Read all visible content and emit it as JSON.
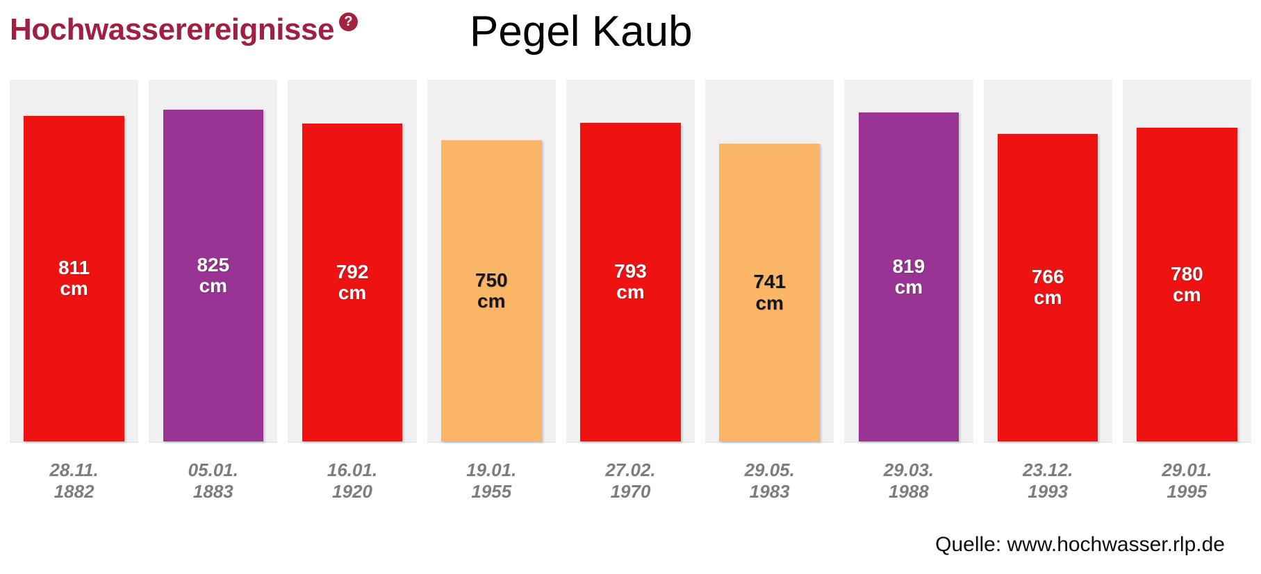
{
  "header": {
    "widget_title": "Hochwasserereignisse",
    "help_icon_glyph": "?",
    "chart_title": "Pegel Kaub"
  },
  "colors": {
    "title_maroon": "#9e2143",
    "badge_maroon": "#a12340",
    "column_background": "#f0f0f0",
    "bar_red": "#ee1212",
    "bar_purple": "#993394",
    "bar_orange": "#fbb567",
    "date_gray": "#7d7d7d"
  },
  "chart_data": {
    "type": "bar",
    "title": "Pegel Kaub",
    "xlabel": "",
    "ylabel": "",
    "unit": "cm",
    "ylim": [
      0,
      900
    ],
    "grid": false,
    "legend": false,
    "categories": [
      "28.11. 1882",
      "05.01. 1883",
      "16.01. 1920",
      "19.01. 1955",
      "27.02. 1970",
      "29.05. 1983",
      "29.03. 1988",
      "23.12. 1993",
      "29.01. 1995"
    ],
    "values": [
      811,
      825,
      792,
      750,
      793,
      741,
      819,
      766,
      780
    ],
    "bars": [
      {
        "value": 811,
        "unit": "cm",
        "date_day": "28.11.",
        "date_year": "1882",
        "color": "#ee1212",
        "text": "light"
      },
      {
        "value": 825,
        "unit": "cm",
        "date_day": "05.01.",
        "date_year": "1883",
        "color": "#993394",
        "text": "light"
      },
      {
        "value": 792,
        "unit": "cm",
        "date_day": "16.01.",
        "date_year": "1920",
        "color": "#ee1212",
        "text": "light"
      },
      {
        "value": 750,
        "unit": "cm",
        "date_day": "19.01.",
        "date_year": "1955",
        "color": "#fbb567",
        "text": "dark"
      },
      {
        "value": 793,
        "unit": "cm",
        "date_day": "27.02.",
        "date_year": "1970",
        "color": "#ee1212",
        "text": "light"
      },
      {
        "value": 741,
        "unit": "cm",
        "date_day": "29.05.",
        "date_year": "1983",
        "color": "#fbb567",
        "text": "dark"
      },
      {
        "value": 819,
        "unit": "cm",
        "date_day": "29.03.",
        "date_year": "1988",
        "color": "#993394",
        "text": "light"
      },
      {
        "value": 766,
        "unit": "cm",
        "date_day": "23.12.",
        "date_year": "1993",
        "color": "#ee1212",
        "text": "light"
      },
      {
        "value": 780,
        "unit": "cm",
        "date_day": "29.01.",
        "date_year": "1995",
        "color": "#ee1212",
        "text": "light"
      }
    ]
  },
  "source": {
    "label": "Quelle: www.hochwasser.rlp.de"
  }
}
